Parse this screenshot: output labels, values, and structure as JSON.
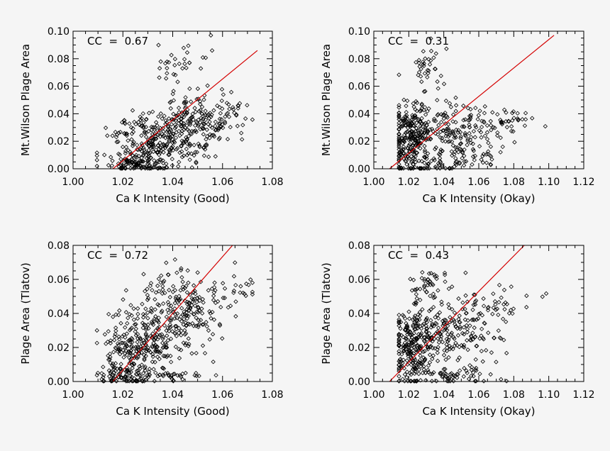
{
  "chart_data": [
    {
      "type": "scatter",
      "cc_text": "CC  =  0.67",
      "xlabel": "Ca K Intensity (Good)",
      "ylabel": "Mt.Wilson Plage Area",
      "xlim": [
        1.0,
        1.08
      ],
      "ylim": [
        0.0,
        0.1
      ],
      "xticks": [
        "1.00",
        "1.02",
        "1.04",
        "1.06",
        "1.08"
      ],
      "yticks": [
        "0.00",
        "0.02",
        "0.04",
        "0.06",
        "0.08",
        "0.10"
      ],
      "marker": "diamond",
      "point_color": "#000000",
      "fit_line": {
        "x": [
          1.016,
          1.074
        ],
        "y": [
          0.0,
          0.086
        ],
        "color": "#d40000"
      },
      "clusters": [
        {
          "cx": 1.03,
          "cy": 0.018,
          "sx": 0.008,
          "sy": 0.011,
          "n": 230
        },
        {
          "cx": 1.046,
          "cy": 0.033,
          "sx": 0.008,
          "sy": 0.012,
          "n": 220
        },
        {
          "cx": 1.024,
          "cy": 0.004,
          "sx": 0.005,
          "sy": 0.003,
          "n": 70
        },
        {
          "cx": 1.044,
          "cy": 0.077,
          "sx": 0.006,
          "sy": 0.009,
          "n": 30
        },
        {
          "cx": 1.063,
          "cy": 0.041,
          "sx": 0.005,
          "sy": 0.006,
          "n": 30
        }
      ]
    },
    {
      "type": "scatter",
      "cc_text": "CC  =  0.31",
      "xlabel": "Ca K Intensity (Okay)",
      "ylabel": "Mt.Wilson Plage Area",
      "xlim": [
        1.0,
        1.12
      ],
      "ylim": [
        0.0,
        0.1
      ],
      "xticks": [
        "1.00",
        "1.02",
        "1.04",
        "1.06",
        "1.08",
        "1.10",
        "1.12"
      ],
      "yticks": [
        "0.00",
        "0.02",
        "0.04",
        "0.06",
        "0.08",
        "0.10"
      ],
      "marker": "diamond",
      "point_color": "#000000",
      "fit_line": {
        "x": [
          1.009,
          1.103
        ],
        "y": [
          0.0,
          0.097
        ],
        "color": "#d40000"
      },
      "clusters": [
        {
          "cx": 1.022,
          "cy": 0.022,
          "sx": 0.007,
          "sy": 0.014,
          "n": 270
        },
        {
          "cx": 1.048,
          "cy": 0.028,
          "sx": 0.014,
          "sy": 0.01,
          "n": 170
        },
        {
          "cx": 1.031,
          "cy": 0.073,
          "sx": 0.004,
          "sy": 0.008,
          "n": 35
        },
        {
          "cx": 1.078,
          "cy": 0.037,
          "sx": 0.008,
          "sy": 0.004,
          "n": 30
        },
        {
          "cx": 1.05,
          "cy": 0.006,
          "sx": 0.012,
          "sy": 0.004,
          "n": 50
        }
      ]
    },
    {
      "type": "scatter",
      "cc_text": "CC  =  0.72",
      "xlabel": "Ca K Intensity (Good)",
      "ylabel": "Plage Area (Tlatov)",
      "xlim": [
        1.0,
        1.08
      ],
      "ylim": [
        0.0,
        0.08
      ],
      "xticks": [
        "1.00",
        "1.02",
        "1.04",
        "1.06",
        "1.08"
      ],
      "yticks": [
        "0.00",
        "0.02",
        "0.04",
        "0.06",
        "0.08"
      ],
      "marker": "diamond",
      "point_color": "#000000",
      "fit_line": {
        "x": [
          1.016,
          1.064
        ],
        "y": [
          0.0,
          0.08
        ],
        "color": "#d40000"
      },
      "clusters": [
        {
          "cx": 1.026,
          "cy": 0.02,
          "sx": 0.007,
          "sy": 0.01,
          "n": 220
        },
        {
          "cx": 1.042,
          "cy": 0.04,
          "sx": 0.008,
          "sy": 0.012,
          "n": 250
        },
        {
          "cx": 1.021,
          "cy": 0.003,
          "sx": 0.006,
          "sy": 0.003,
          "n": 80
        },
        {
          "cx": 1.04,
          "cy": 0.004,
          "sx": 0.006,
          "sy": 0.001,
          "n": 25
        },
        {
          "cx": 1.063,
          "cy": 0.05,
          "sx": 0.006,
          "sy": 0.006,
          "n": 30
        }
      ]
    },
    {
      "type": "scatter",
      "cc_text": "CC  =  0.43",
      "xlabel": "Ca K Intensity (Okay)",
      "ylabel": "Plage Area (Tlatov)",
      "xlim": [
        1.0,
        1.12
      ],
      "ylim": [
        0.0,
        0.08
      ],
      "xticks": [
        "1.00",
        "1.02",
        "1.04",
        "1.06",
        "1.08",
        "1.10",
        "1.12"
      ],
      "yticks": [
        "0.00",
        "0.02",
        "0.04",
        "0.06",
        "0.08"
      ],
      "marker": "diamond",
      "point_color": "#000000",
      "fit_line": {
        "x": [
          1.009,
          1.086
        ],
        "y": [
          0.0,
          0.08
        ],
        "color": "#d40000"
      },
      "clusters": [
        {
          "cx": 1.023,
          "cy": 0.02,
          "sx": 0.007,
          "sy": 0.012,
          "n": 250
        },
        {
          "cx": 1.045,
          "cy": 0.03,
          "sx": 0.012,
          "sy": 0.012,
          "n": 200
        },
        {
          "cx": 1.03,
          "cy": 0.057,
          "sx": 0.004,
          "sy": 0.005,
          "n": 35
        },
        {
          "cx": 1.072,
          "cy": 0.045,
          "sx": 0.01,
          "sy": 0.006,
          "n": 35
        },
        {
          "cx": 1.048,
          "cy": 0.004,
          "sx": 0.012,
          "sy": 0.003,
          "n": 50
        }
      ]
    }
  ]
}
